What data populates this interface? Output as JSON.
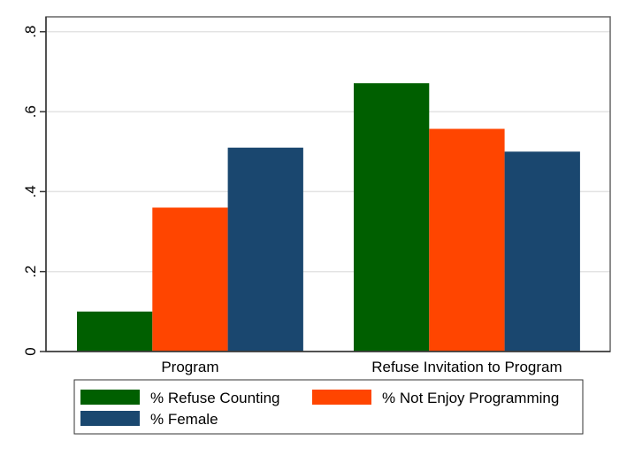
{
  "chart_data": {
    "type": "bar",
    "title": "",
    "xlabel": "",
    "ylabel": "",
    "categories": [
      "Program",
      "Refuse Invitation to Program"
    ],
    "series": [
      {
        "name": "% Refuse Counting",
        "color": "#005F00",
        "values": [
          0.1,
          0.671
        ]
      },
      {
        "name": "% Not Enjoy Programming",
        "color": "#FF4500",
        "values": [
          0.36,
          0.557
        ]
      },
      {
        "name": "% Female",
        "color": "#1A476F",
        "values": [
          0.51,
          0.5
        ]
      }
    ],
    "ylim": [
      0,
      0.84
    ],
    "yticks": [
      0,
      0.2,
      0.4,
      0.6,
      0.8
    ],
    "ytick_labels": [
      "0",
      ".2",
      ".4",
      ".6",
      ".8"
    ],
    "grid": true,
    "legend": {
      "position": "bottom",
      "columns": 2
    }
  }
}
